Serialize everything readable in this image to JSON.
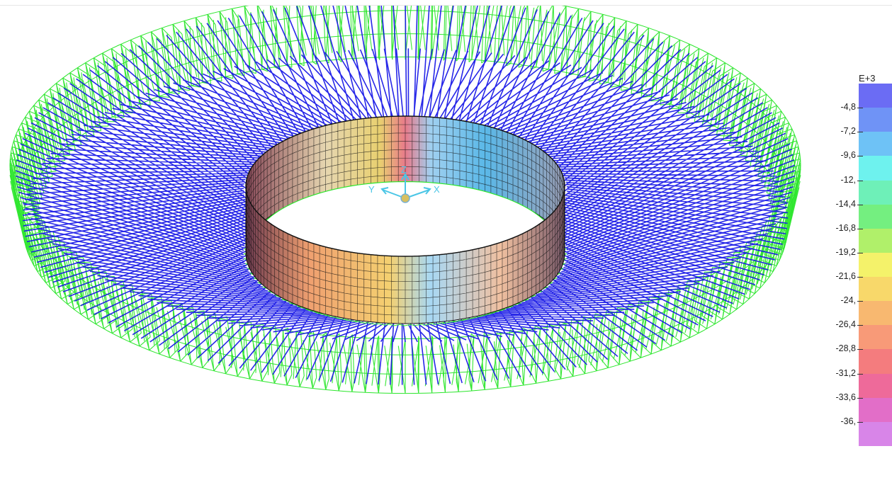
{
  "legend": {
    "exponent_label": "E+3",
    "labels": [
      "-4,8",
      "-7,2",
      "-9,6",
      "-12,",
      "-14,4",
      "-16,8",
      "-19,2",
      "-21,6",
      "-24,",
      "-26,4",
      "-28,8",
      "-31,2",
      "-33,6",
      "-36,"
    ],
    "band_colors": [
      "#6b6cf4",
      "#6f93f6",
      "#6ec2f6",
      "#6ef2ee",
      "#6ef0b8",
      "#74ef80",
      "#b0f06a",
      "#f4f26a",
      "#f8d86a",
      "#f8b870",
      "#f89a78",
      "#f47c7e",
      "#ee6a9a",
      "#e26ec8",
      "#d885e8"
    ]
  },
  "axes": {
    "x_label": "X",
    "y_label": "Y",
    "z_label": "Z",
    "color": "#4ac6e6"
  },
  "colors": {
    "cables": "#1515e6",
    "frames": "#2ce62c",
    "wall_grid": "#111111"
  },
  "icons": {
    "triad": "axis-triad-icon"
  }
}
